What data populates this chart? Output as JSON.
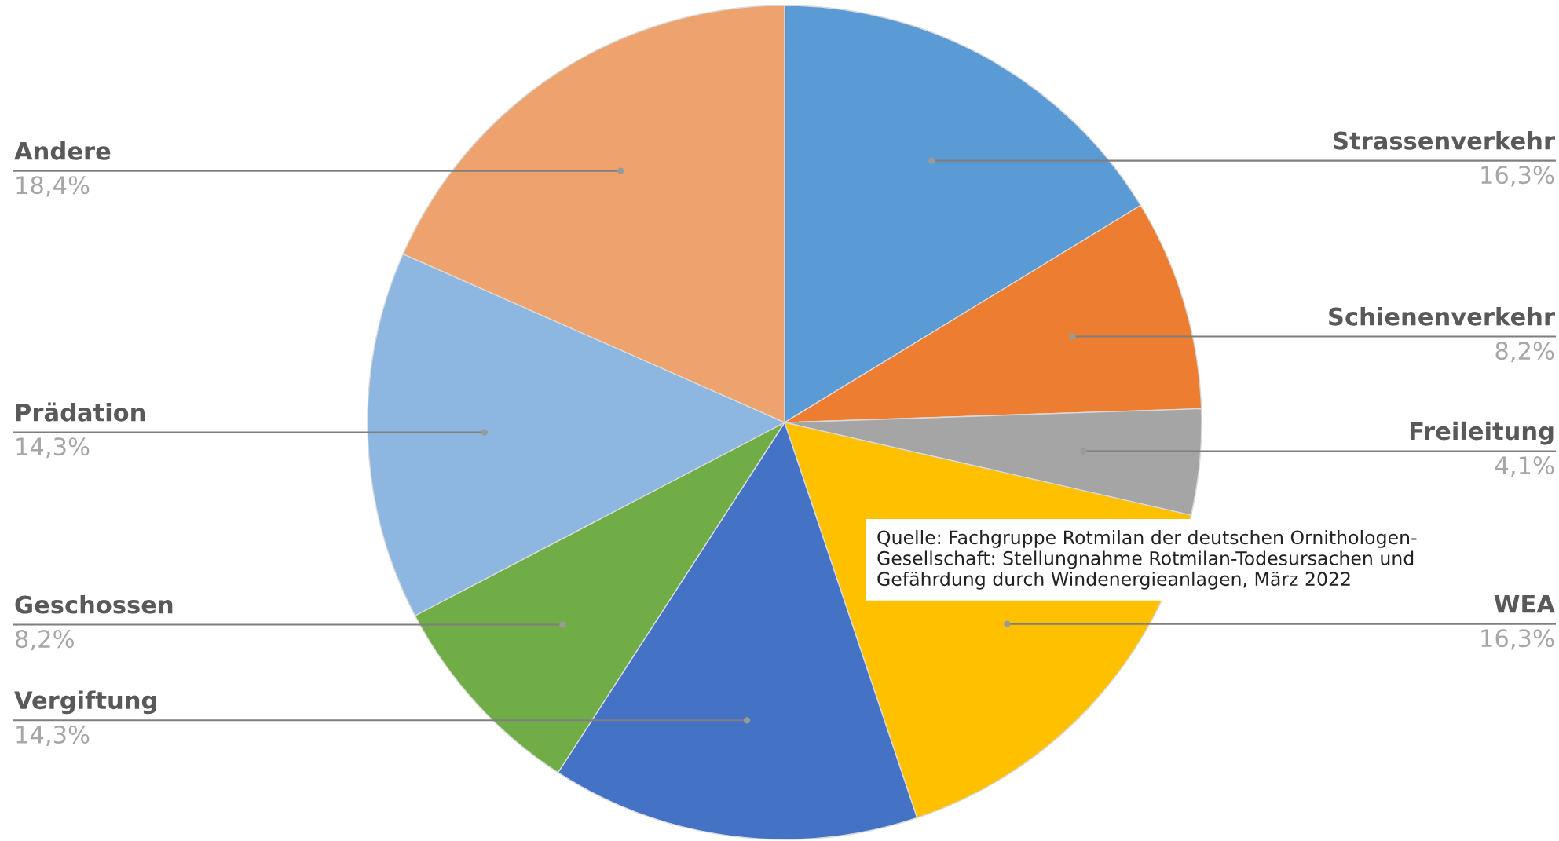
{
  "chart_data": {
    "type": "pie",
    "categories": [
      "Strassenverkehr",
      "Schienenverkehr",
      "Freileitung",
      "WEA",
      "Vergiftung",
      "Geschossen",
      "Prädation",
      "Andere"
    ],
    "values": [
      16.3,
      8.2,
      4.1,
      16.3,
      14.3,
      8.2,
      14.3,
      18.4
    ],
    "value_labels": [
      "16,3%",
      "8,2%",
      "4,1%",
      "16,3%",
      "14,3%",
      "8,2%",
      "14,3%",
      "18,4%"
    ],
    "colors": [
      "#5b9bd5",
      "#ed7d31",
      "#a5a5a5",
      "#ffc000",
      "#4472c4",
      "#70ad47",
      "#8db6e0",
      "#eea26d"
    ],
    "annotations": [
      "Quelle: Fachgruppe Rotmilan der deutschen Ornithologen-\nGesellschaft: Stellungnahme Rotmilan-Todesursachen und\nGefährdung durch Windenergieanlagen, März 2022"
    ]
  }
}
